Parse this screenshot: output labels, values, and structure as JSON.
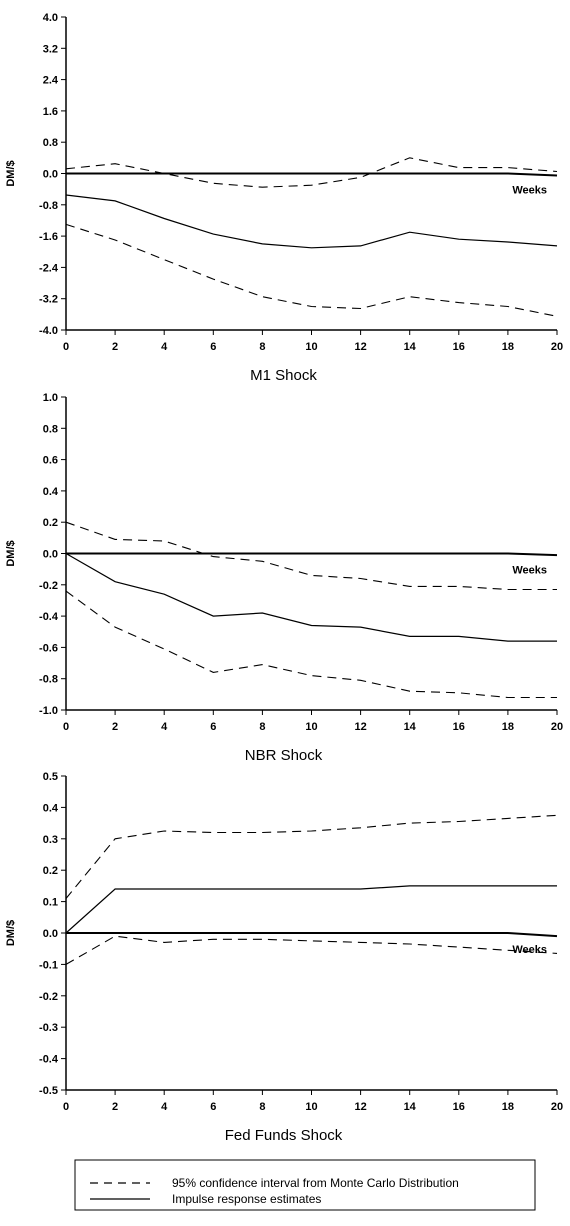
{
  "legend": {
    "ci_label": "95% confidence interval from Monte Carlo Distribution",
    "est_label": "Impulse response estimates"
  },
  "chart_data": [
    {
      "type": "line",
      "title": "M1 Shock",
      "ylabel": "DM/$",
      "xlabel_inside": "Weeks",
      "ylim": [
        -4.0,
        4.0
      ],
      "yticks": [
        4.0,
        3.2,
        2.4,
        1.6,
        0.8,
        0.0,
        -0.8,
        -1.6,
        -2.4,
        -3.2,
        -4.0
      ],
      "ytick_labels": [
        "4.0",
        "3.2",
        "2.4",
        "1.6",
        "0.8",
        "0.0",
        "-0.8",
        "-1.6",
        "-2.4",
        "-3.2",
        "-4.0"
      ],
      "x": [
        0,
        2,
        4,
        6,
        8,
        10,
        12,
        14,
        16,
        18,
        20
      ],
      "series": [
        {
          "style": "solid",
          "values": [
            -0.55,
            -0.7,
            -1.15,
            -1.55,
            -1.8,
            -1.9,
            -1.85,
            -1.5,
            -1.68,
            -1.75,
            -1.85
          ]
        },
        {
          "style": "dashed",
          "values": [
            0.12,
            0.25,
            0.0,
            -0.25,
            -0.35,
            -0.3,
            -0.1,
            0.4,
            0.15,
            0.15,
            0.05
          ]
        },
        {
          "style": "dashed",
          "values": [
            -1.3,
            -1.7,
            -2.2,
            -2.7,
            -3.15,
            -3.4,
            -3.45,
            -3.15,
            -3.3,
            -3.4,
            -3.65
          ]
        },
        {
          "style": "zero",
          "values": [
            0.0,
            0.0,
            0.0,
            0.0,
            0.0,
            0.0,
            0.0,
            0.0,
            0.0,
            0.0,
            -0.05
          ]
        }
      ]
    },
    {
      "type": "line",
      "title": "NBR Shock",
      "ylabel": "DM/$",
      "xlabel_inside": "Weeks",
      "ylim": [
        -1.0,
        1.0
      ],
      "yticks": [
        1.0,
        0.8,
        0.6,
        0.4,
        0.2,
        0.0,
        -0.2,
        -0.4,
        -0.6,
        -0.8,
        -1.0
      ],
      "ytick_labels": [
        "1.0",
        "0.8",
        "0.6",
        "0.4",
        "0.2",
        "0.0",
        "-0.2",
        "-0.4",
        "-0.6",
        "-0.8",
        "-1.0"
      ],
      "x": [
        0,
        2,
        4,
        6,
        8,
        10,
        12,
        14,
        16,
        18,
        20
      ],
      "series": [
        {
          "style": "solid",
          "values": [
            0.0,
            -0.18,
            -0.26,
            -0.4,
            -0.38,
            -0.46,
            -0.47,
            -0.53,
            -0.53,
            -0.56,
            -0.56
          ]
        },
        {
          "style": "dashed",
          "values": [
            0.2,
            0.09,
            0.08,
            -0.02,
            -0.05,
            -0.14,
            -0.16,
            -0.21,
            -0.21,
            -0.23,
            -0.23
          ]
        },
        {
          "style": "dashed",
          "values": [
            -0.24,
            -0.47,
            -0.61,
            -0.76,
            -0.71,
            -0.78,
            -0.81,
            -0.88,
            -0.89,
            -0.92,
            -0.92
          ]
        },
        {
          "style": "zero",
          "values": [
            0.0,
            0.0,
            0.0,
            0.0,
            0.0,
            0.0,
            0.0,
            0.0,
            0.0,
            0.0,
            -0.01
          ]
        }
      ]
    },
    {
      "type": "line",
      "title": "Fed Funds Shock",
      "ylabel": "DM/$",
      "xlabel_inside": "Weeks",
      "ylim": [
        -0.5,
        0.5
      ],
      "yticks": [
        0.5,
        0.4,
        0.3,
        0.2,
        0.1,
        0.0,
        -0.1,
        -0.2,
        -0.3,
        -0.4,
        -0.5
      ],
      "ytick_labels": [
        "0.5",
        "0.4",
        "0.3",
        "0.2",
        "0.1",
        "0.0",
        "-0.1",
        "-0.2",
        "-0.3",
        "-0.4",
        "-0.5"
      ],
      "x": [
        0,
        2,
        4,
        6,
        8,
        10,
        12,
        14,
        16,
        18,
        20
      ],
      "series": [
        {
          "style": "solid",
          "values": [
            0.0,
            0.14,
            0.14,
            0.14,
            0.14,
            0.14,
            0.14,
            0.15,
            0.15,
            0.15,
            0.15
          ]
        },
        {
          "style": "dashed",
          "values": [
            0.11,
            0.3,
            0.325,
            0.32,
            0.32,
            0.325,
            0.335,
            0.35,
            0.355,
            0.365,
            0.375
          ]
        },
        {
          "style": "dashed",
          "values": [
            -0.1,
            -0.01,
            -0.03,
            -0.02,
            -0.02,
            -0.025,
            -0.03,
            -0.035,
            -0.045,
            -0.055,
            -0.065
          ]
        },
        {
          "style": "zero",
          "values": [
            0.0,
            0.0,
            0.0,
            0.0,
            0.0,
            0.0,
            0.0,
            0.0,
            0.0,
            0.0,
            -0.01
          ]
        }
      ]
    }
  ]
}
